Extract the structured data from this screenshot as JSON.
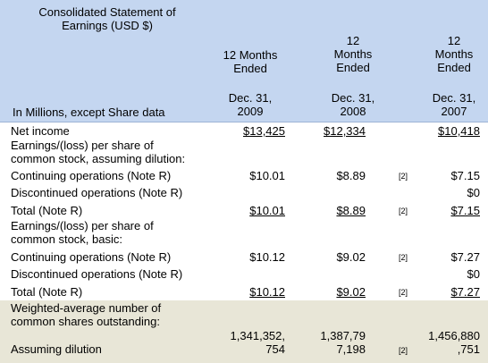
{
  "header": {
    "title": "Consolidated Statement of Earnings (USD $)",
    "title_line1": "Consolidated Statement of",
    "title_line2": "Earnings (USD $)",
    "subtitle": "In Millions, except Share data",
    "columns": [
      {
        "period_l1": "12 Months",
        "period_l2": "",
        "period_l3": "Ended",
        "date_l1": "Dec. 31,",
        "date_l2": "2009"
      },
      {
        "period_l1": "12",
        "period_l2": "Months",
        "period_l3": "Ended",
        "date_l1": "Dec. 31,",
        "date_l2": "2008"
      },
      {
        "period_l1": "12",
        "period_l2": "Months",
        "period_l3": "Ended",
        "date_l1": "Dec. 31,",
        "date_l2": "2007"
      }
    ]
  },
  "rows": [
    {
      "label": "Net income",
      "v1": "$13,425",
      "v2": "$12,334",
      "note": "",
      "v3": "$10,418"
    },
    {
      "label": "Earnings/(loss) per share of",
      "label2": "common stock, assuming dilution:"
    },
    {
      "label": "Continuing operations (Note R)",
      "v1": "$10.01",
      "v2": "$8.89",
      "note": "[2]",
      "v3": "$7.15"
    },
    {
      "label": "Discontinued operations (Note R)",
      "v1": "",
      "v2": "",
      "note": "",
      "v3": "$0"
    },
    {
      "label": "Total (Note R)",
      "v1": "$10.01",
      "v2": "$8.89",
      "note": "[2]",
      "v3": "$7.15"
    },
    {
      "label": "Earnings/(loss) per share of",
      "label2": "common stock, basic:"
    },
    {
      "label": "Continuing operations (Note R)",
      "v1": "$10.12",
      "v2": "$9.02",
      "note": "[2]",
      "v3": "$7.27"
    },
    {
      "label": "Discontinued operations (Note R)",
      "v1": "",
      "v2": "",
      "note": "",
      "v3": "$0"
    },
    {
      "label": "Total (Note R)",
      "v1": "$10.12",
      "v2": "$9.02",
      "note": "[2]",
      "v3": "$7.27"
    },
    {
      "label": "Weighted-average number of",
      "label2": "common shares outstanding:"
    },
    {
      "label": "Assuming dilution",
      "v1_l1": "1,341,352,",
      "v1_l2": "754",
      "v2_l1": "1,387,79",
      "v2_l2": "7,198",
      "note": "[2]",
      "v3_l1": "1,456,880",
      "v3_l2": ",751"
    }
  ]
}
